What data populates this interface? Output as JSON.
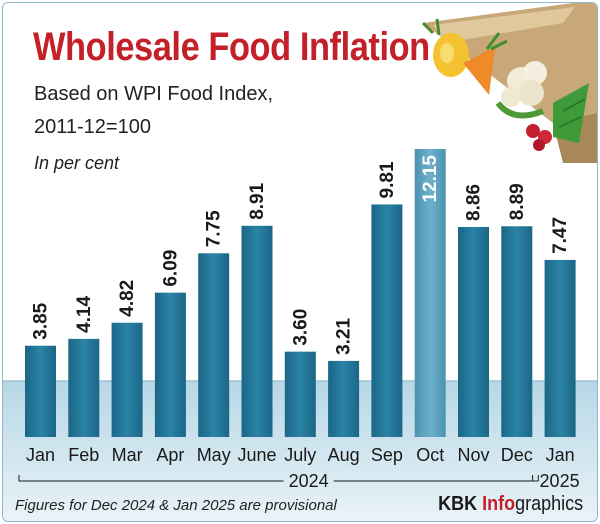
{
  "header": {
    "title": "Wholesale Food Inflation",
    "subtitle_line1": "Based on WPI Food Index,",
    "subtitle_line2": "2011-12=100",
    "unit": "In per cent"
  },
  "footer": {
    "note": "Figures for Dec 2024 & Jan 2025 are provisional",
    "brand_kbk": "KBK",
    "brand_info": "Info",
    "brand_graphics": "graphics"
  },
  "colors": {
    "title": "#c4202a",
    "bar": "#1f6f8f",
    "bar_highlight": "#5aa0bd",
    "water": "#cfe4ee"
  },
  "chart_data": {
    "type": "bar",
    "title": "Wholesale Food Inflation",
    "ylabel": "In per cent",
    "categories": [
      "Jan",
      "Feb",
      "Mar",
      "Apr",
      "May",
      "June",
      "July",
      "Aug",
      "Sep",
      "Oct",
      "Nov",
      "Dec",
      "Jan"
    ],
    "values": [
      3.85,
      4.14,
      4.82,
      6.09,
      7.75,
      8.91,
      3.6,
      3.21,
      9.81,
      12.15,
      8.86,
      8.89,
      7.47
    ],
    "value_labels": [
      "3.85",
      "4.14",
      "4.82",
      "6.09",
      "7.75",
      "8.91",
      "3.60",
      "3.21",
      "9.81",
      "12.15",
      "8.86",
      "8.89",
      "7.47"
    ],
    "year_groups": [
      {
        "label": "2024",
        "start": 0,
        "end": 11
      },
      {
        "label": "2025",
        "start": 12,
        "end": 12
      }
    ],
    "highlight_index": 9,
    "ylim": [
      0,
      12.15
    ],
    "grid": false,
    "legend": "none"
  }
}
